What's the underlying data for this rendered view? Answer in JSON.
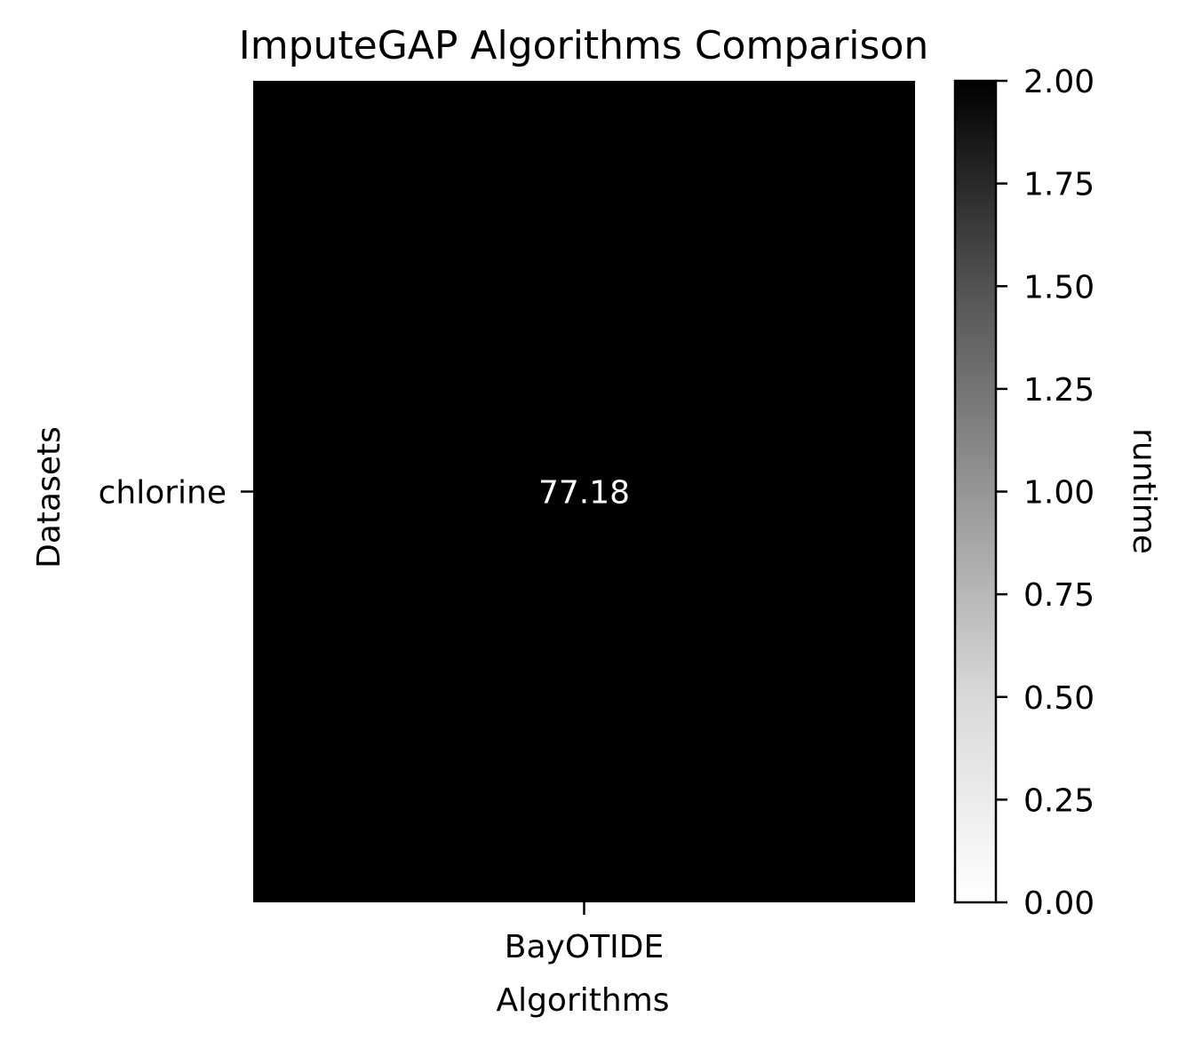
{
  "chart_data": {
    "type": "heatmap",
    "title": "ImputeGAP Algorithms Comparison",
    "xlabel": "Algorithms",
    "ylabel": "Datasets",
    "x_categories": [
      "BayOTIDE"
    ],
    "y_categories": [
      "chlorine"
    ],
    "values": [
      [
        77.18
      ]
    ],
    "cell_labels": [
      [
        "77.18"
      ]
    ],
    "colorbar": {
      "label": "runtime",
      "range": [
        0,
        2
      ],
      "ticks": [
        "0.00",
        "0.25",
        "0.50",
        "0.75",
        "1.00",
        "1.25",
        "1.50",
        "1.75",
        "2.00"
      ],
      "colormap": "Greys",
      "low_color": "#ffffff",
      "high_color": "#000000"
    },
    "cell_text_color": "#ffffff",
    "grid": false
  }
}
